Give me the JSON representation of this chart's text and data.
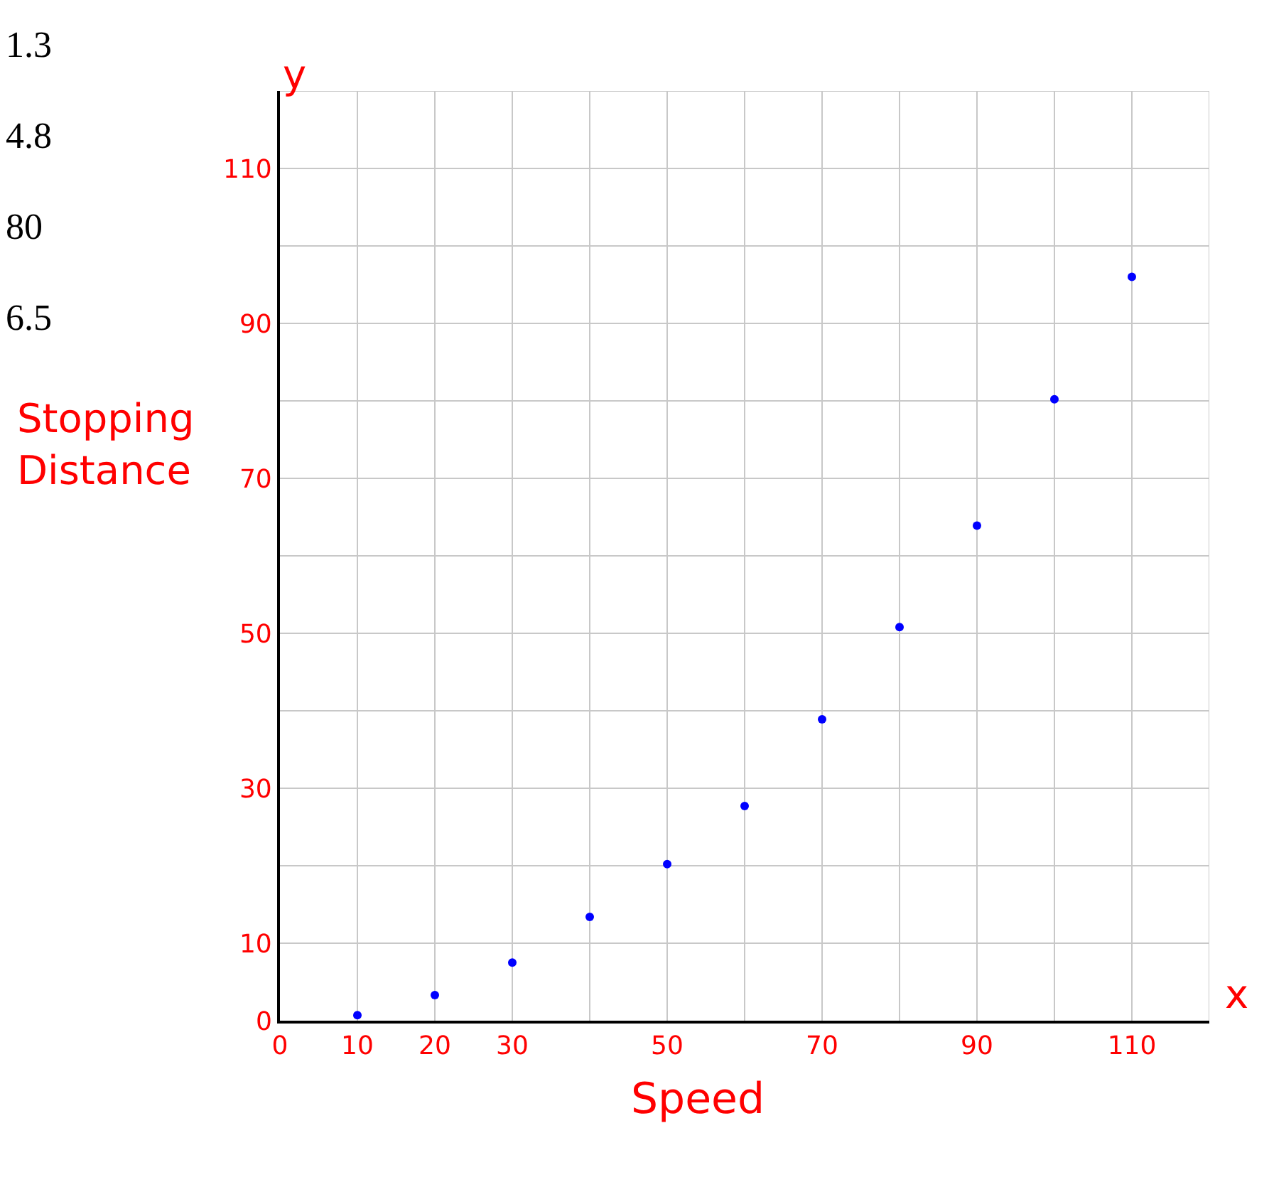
{
  "chart_data": {
    "type": "scatter",
    "xlabel": "Speed",
    "ylabel": "Stopping Distance",
    "x": [
      10,
      20,
      30,
      40,
      50,
      60,
      70,
      80,
      90,
      100,
      110
    ],
    "series": [
      {
        "color": "#0000ff",
        "values": [
          0.7,
          3.3,
          7.5,
          13.4,
          20.2,
          27.7,
          38.9,
          50.8,
          63.9,
          80.2,
          96.0
        ]
      }
    ],
    "xlim": [
      0,
      120
    ],
    "ylim": [
      0,
      120
    ],
    "xticks": [
      0,
      10,
      20,
      30,
      {
        "value": 40,
        "label": null
      },
      50,
      {
        "value": 60,
        "label": null
      },
      70,
      {
        "value": 80,
        "label": null
      },
      90,
      {
        "value": 100,
        "label": null
      },
      110,
      {
        "value": 120,
        "label": null
      }
    ],
    "yticks": [
      0,
      10,
      {
        "value": 20,
        "label": null
      },
      30,
      {
        "value": 40,
        "label": null
      },
      50,
      {
        "value": 60,
        "label": null
      },
      70,
      {
        "value": 80,
        "label": null
      },
      90,
      {
        "value": 100,
        "label": null
      },
      110,
      {
        "value": 120,
        "label": null
      }
    ],
    "annotations": [
      "x",
      "y",
      "1.3",
      "4.8",
      "80",
      "6.5"
    ],
    "grid": true,
    "legend": false,
    "marker": "circle"
  }
}
